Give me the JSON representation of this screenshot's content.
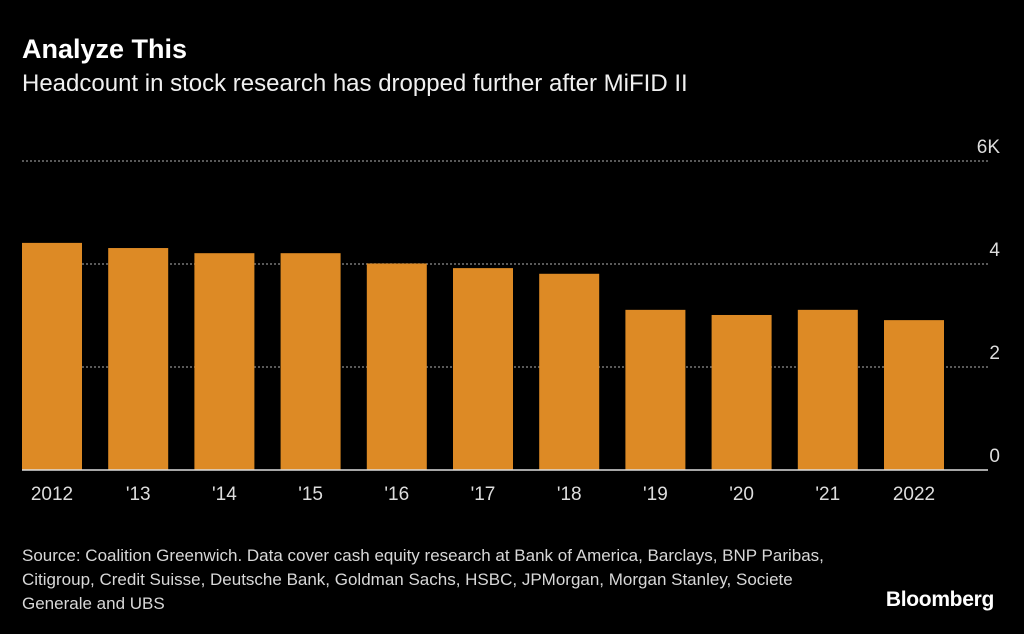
{
  "title": "Analyze This",
  "subtitle": "Headcount in stock research has dropped further after MiFID II",
  "source": "Source: Coalition Greenwich. Data cover cash equity research at Bank of America, Barclays, BNP Paribas, Citigroup, Credit Suisse, Deutsche Bank, Goldman Sachs, HSBC, JPMorgan, Morgan Stanley, Societe Generale and UBS",
  "logo": "Bloomberg",
  "colors": {
    "bar": "#dd8a25",
    "grid": "#777777",
    "background": "#000000"
  },
  "chart_data": {
    "type": "bar",
    "title": "Analyze This",
    "subtitle": "Headcount in stock research has dropped further after MiFID II",
    "xlabel": "",
    "ylabel": "",
    "categories": [
      "2012",
      "'13",
      "'14",
      "'15",
      "'16",
      "'17",
      "'18",
      "'19",
      "'20",
      "'21",
      "2022"
    ],
    "values": [
      4.41,
      4.31,
      4.21,
      4.21,
      4.01,
      3.92,
      3.81,
      3.11,
      3.01,
      3.11,
      2.91
    ],
    "units": "thousands",
    "ylim": [
      0,
      6
    ],
    "yticks": [
      0,
      2,
      4,
      6
    ],
    "ytick_labels": [
      "0",
      "2",
      "4",
      "6K"
    ],
    "grid": true
  }
}
